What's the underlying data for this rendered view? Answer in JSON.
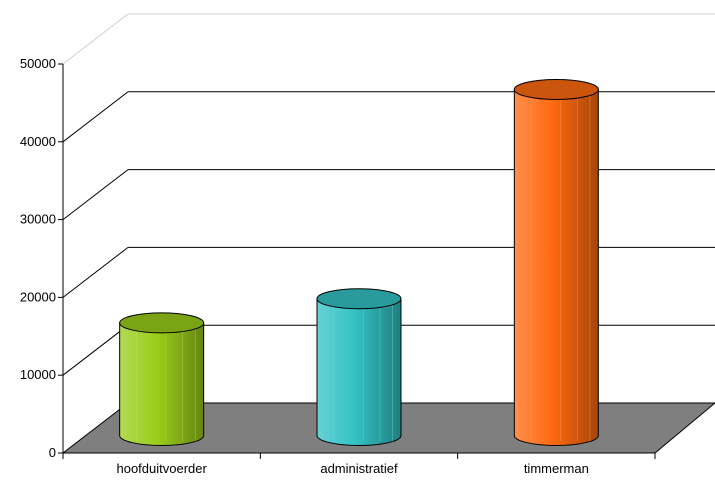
{
  "chart_data": {
    "type": "bar",
    "style": "3d-cylinder",
    "categories": [
      "hoofduitvoerder",
      "administratief",
      "timmerman"
    ],
    "values": [
      14800,
      17900,
      44800
    ],
    "ylim": [
      0,
      50000
    ],
    "yticks": [
      0,
      10000,
      20000,
      30000,
      40000,
      50000
    ],
    "colors": [
      "#9acd1a",
      "#33c2c4",
      "#ff6a10"
    ],
    "grid": true,
    "legend": "none",
    "floor_color": "#7f7f7f"
  }
}
